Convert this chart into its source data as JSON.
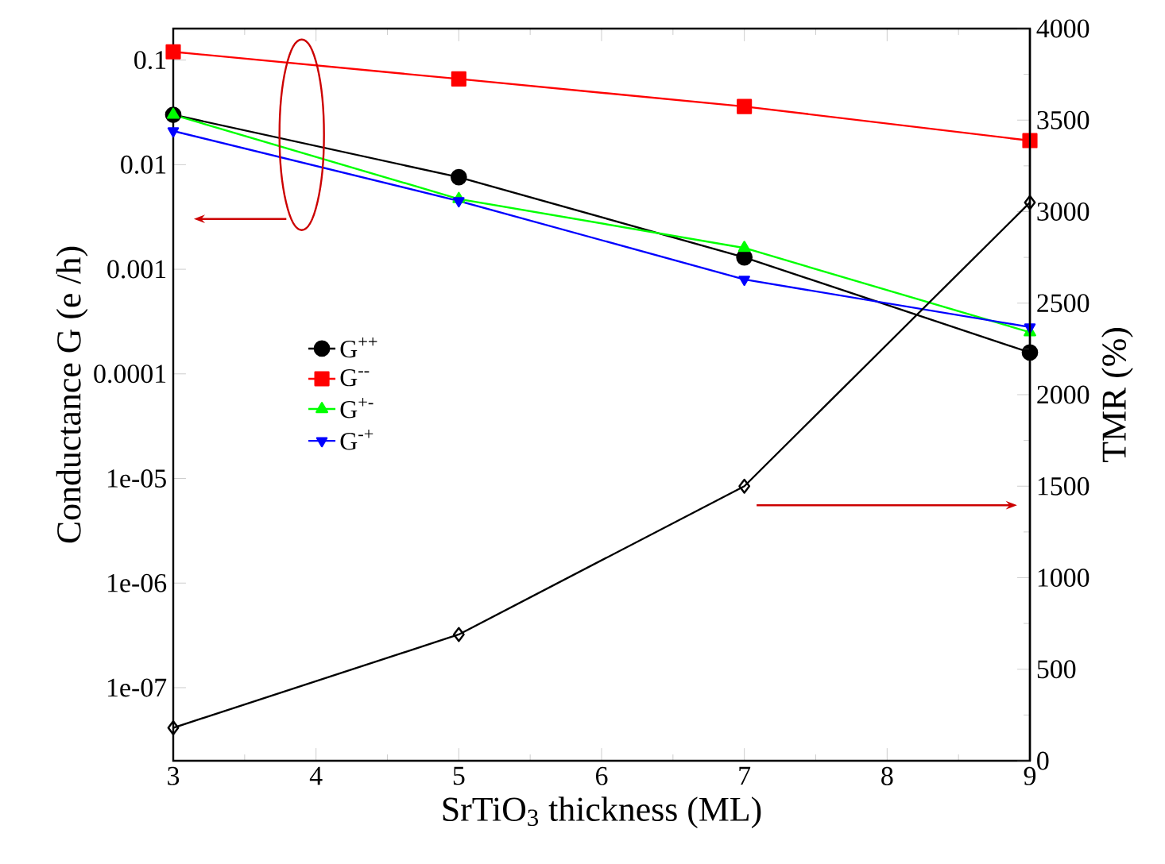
{
  "chart_data": {
    "type": "line",
    "xlabel": "SrTiO$_{3}$ thickness (ML)",
    "ylabel": "Conductance G (e /h)",
    "y2label": "TMR (%)",
    "x": [
      3,
      5,
      7,
      9
    ],
    "xlim": [
      3,
      9
    ],
    "xticks": [
      3,
      4,
      5,
      6,
      7,
      8,
      9
    ],
    "ylim": [
      2e-08,
      0.2
    ],
    "yticks": [
      0.1,
      0.01,
      0.001,
      0.0001,
      {
        "value": 1e-05,
        "label": "1e-05"
      },
      {
        "value": 1e-06,
        "label": "1e-06"
      },
      {
        "value": 1e-07,
        "label": "1e-07"
      }
    ],
    "y2lim": [
      0,
      4000
    ],
    "y2ticks": [
      0,
      500,
      1000,
      1500,
      2000,
      2500,
      3000,
      3500,
      4000
    ],
    "log": "y",
    "legend": "center left",
    "line_style": "solid",
    "series": [
      {
        "name": "G$^{++}$",
        "color": "#000000",
        "marker": "circle",
        "values": [
          0.03,
          0.0076,
          0.0013,
          0.00016
        ]
      },
      {
        "name": "G$^{--}$",
        "color": "#ff0000",
        "marker": "square",
        "values": [
          0.12,
          0.066,
          0.036,
          0.017
        ]
      },
      {
        "name": "G$^{+-}$",
        "color": "#00ff00",
        "marker": "triangle",
        "values": [
          0.03,
          0.0047,
          0.0016,
          0.00025
        ]
      },
      {
        "name": "G$^{-+}$",
        "color": "#0000ff",
        "marker": "triangle-down",
        "values": [
          0.021,
          0.0045,
          0.0008,
          0.00028
        ]
      },
      {
        "color": "#000000",
        "marker": "diamond",
        "axis": "y2",
        "values": [
          180,
          690,
          1500,
          3050
        ]
      }
    ]
  }
}
